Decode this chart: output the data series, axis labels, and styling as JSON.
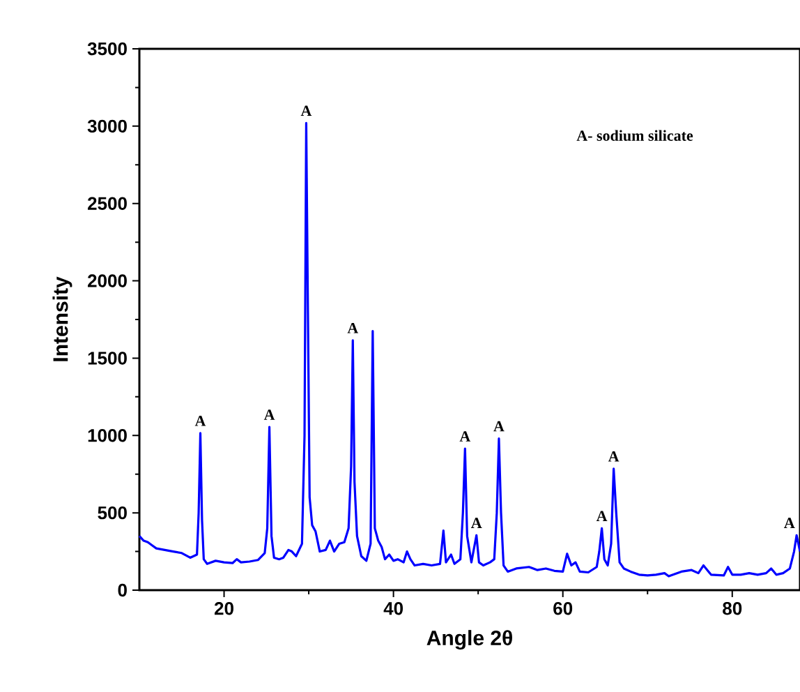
{
  "chart_data": {
    "type": "line",
    "xlabel": "Angle 2θ",
    "ylabel": "Intensity",
    "xlim": [
      10,
      88
    ],
    "ylim": [
      0,
      3500
    ],
    "xticks": [
      20,
      40,
      60,
      80
    ],
    "yticks": [
      0,
      500,
      1000,
      1500,
      2000,
      2500,
      3000,
      3500
    ],
    "grid": false,
    "marker": "none",
    "line_style": "solid",
    "series": [
      {
        "color": "#0000ff",
        "x": [
          10,
          10.5,
          11,
          11.5,
          12,
          13,
          14,
          15,
          16,
          16.8,
          17.0,
          17.2,
          17.4,
          17.6,
          18,
          19,
          20,
          21,
          21.5,
          22,
          23,
          24,
          24.8,
          25.1,
          25.35,
          25.6,
          25.9,
          26.5,
          27,
          27.6,
          28,
          28.5,
          29.2,
          29.5,
          29.7,
          29.9,
          30.1,
          30.4,
          30.8,
          31.3,
          32,
          32.5,
          33,
          33.6,
          34.2,
          34.7,
          35.0,
          35.2,
          35.4,
          35.7,
          36.2,
          36.8,
          37.3,
          37.55,
          37.8,
          38.2,
          38.6,
          39,
          39.5,
          40,
          40.5,
          41.2,
          41.6,
          42,
          42.5,
          43.5,
          44.5,
          45.5,
          45.9,
          46.2,
          46.8,
          47.2,
          47.9,
          48.2,
          48.45,
          48.7,
          49.2,
          49.8,
          50.1,
          50.6,
          51.4,
          51.9,
          52.2,
          52.45,
          52.7,
          53,
          53.5,
          54.5,
          56,
          57,
          58,
          59,
          60,
          60.5,
          61,
          61.5,
          62,
          63,
          64,
          64.3,
          64.6,
          64.9,
          65.3,
          65.7,
          66.0,
          66.3,
          66.7,
          67.2,
          68,
          69,
          70,
          71,
          72,
          72.5,
          74,
          75.2,
          76,
          76.6,
          77.5,
          79,
          79.5,
          80,
          81,
          82,
          83,
          84,
          84.6,
          85.2,
          86,
          86.8,
          87.3,
          87.6,
          88
        ],
        "values": [
          350,
          320,
          310,
          290,
          270,
          260,
          250,
          240,
          210,
          230,
          500,
          1015,
          450,
          200,
          170,
          190,
          180,
          175,
          200,
          180,
          185,
          195,
          240,
          400,
          1055,
          350,
          210,
          200,
          210,
          260,
          250,
          220,
          300,
          1000,
          3020,
          1800,
          600,
          420,
          380,
          250,
          260,
          320,
          250,
          300,
          310,
          400,
          800,
          1615,
          700,
          350,
          220,
          190,
          300,
          1675,
          400,
          320,
          280,
          200,
          230,
          190,
          200,
          180,
          250,
          200,
          160,
          170,
          160,
          170,
          385,
          180,
          230,
          170,
          200,
          500,
          915,
          350,
          180,
          355,
          180,
          160,
          180,
          200,
          500,
          980,
          500,
          160,
          120,
          140,
          150,
          130,
          140,
          125,
          120,
          235,
          160,
          180,
          120,
          115,
          150,
          250,
          400,
          200,
          160,
          300,
          785,
          500,
          180,
          140,
          120,
          100,
          95,
          100,
          110,
          90,
          120,
          130,
          110,
          160,
          100,
          95,
          150,
          100,
          100,
          110,
          100,
          110,
          140,
          100,
          110,
          140,
          250,
          355,
          250
        ]
      }
    ],
    "annotations": [
      "A- sodium silicate",
      {
        "text": "A",
        "x": 17.2,
        "y": 1015
      },
      {
        "text": "A",
        "x": 25.35,
        "y": 1055
      },
      {
        "text": "A",
        "x": 29.7,
        "y": 3020
      },
      {
        "text": "A",
        "x": 35.2,
        "y": 1615
      },
      {
        "text": "A",
        "x": 48.45,
        "y": 915
      },
      {
        "text": "A",
        "x": 49.8,
        "y": 355
      },
      {
        "text": "A",
        "x": 52.45,
        "y": 980
      },
      {
        "text": "A",
        "x": 64.6,
        "y": 400
      },
      {
        "text": "A",
        "x": 66.0,
        "y": 785
      },
      {
        "text": "A",
        "x": 87.6,
        "y": 355
      }
    ]
  }
}
